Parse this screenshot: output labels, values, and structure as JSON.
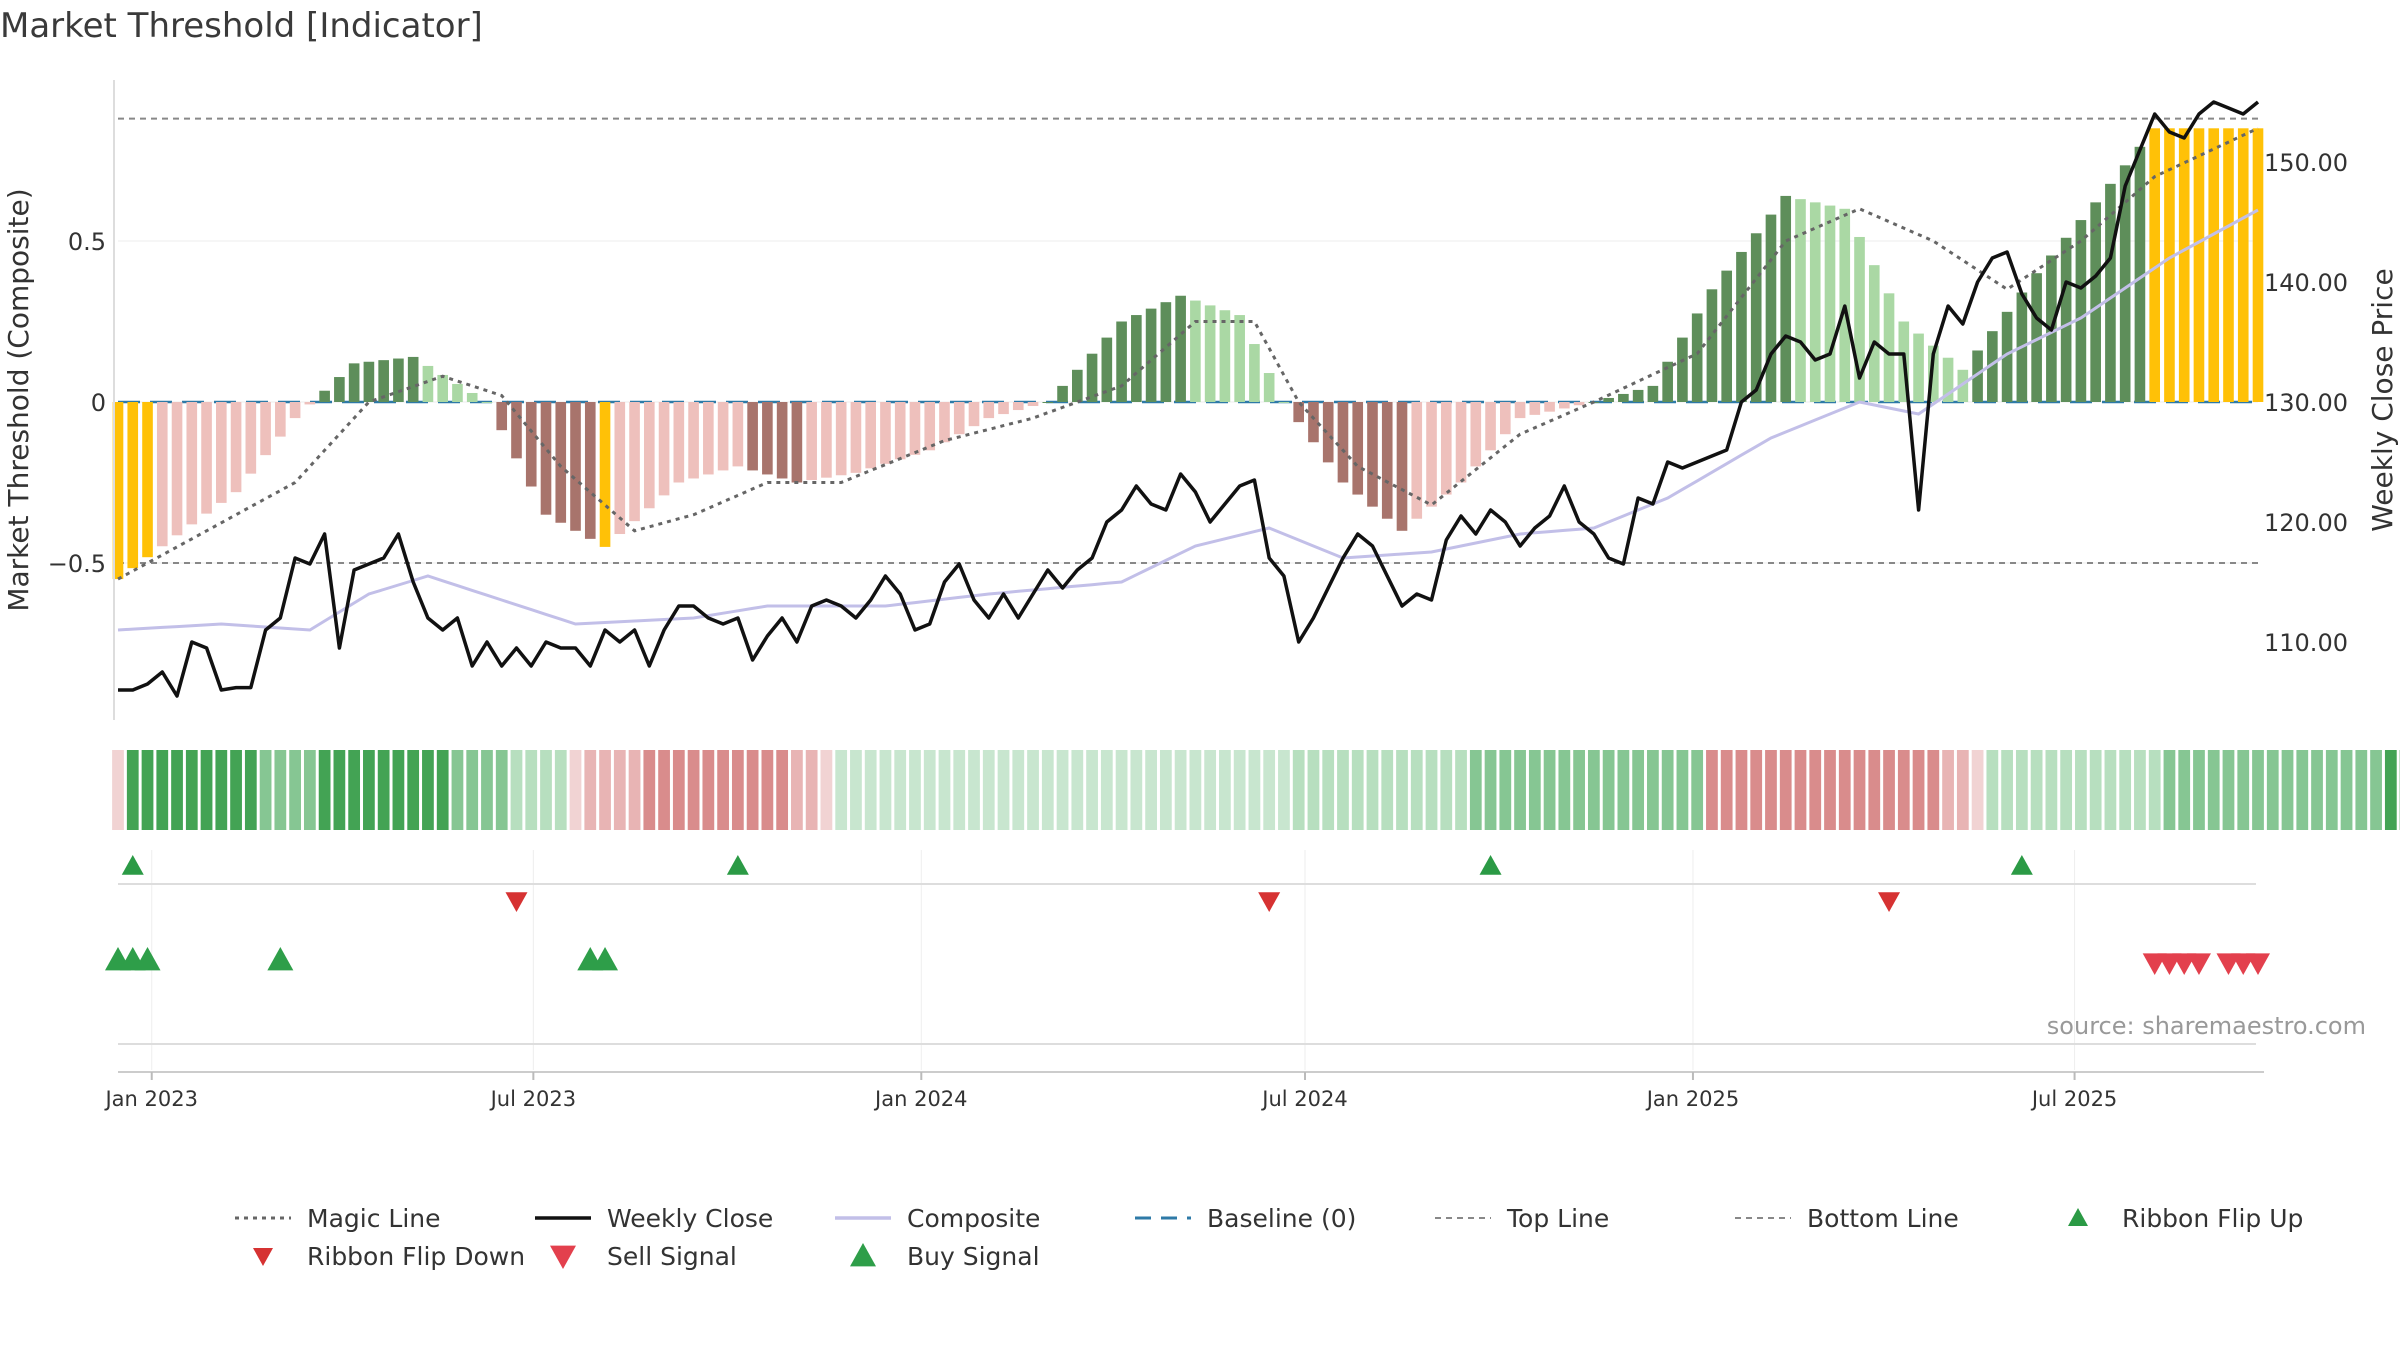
{
  "chart_title": "Market Threshold [Indicator]",
  "chart_data": {
    "type": "bar",
    "title": "Market Threshold [Indicator]",
    "ylabel": "Market Threshold (Composite)",
    "y2label": "Weekly Close Price",
    "ylim": [
      -0.9,
      0.9
    ],
    "y2lim": [
      104,
      155
    ],
    "yticks": [
      {
        "value": 0.5,
        "label": "0.5"
      },
      {
        "value": 0,
        "label": "0"
      },
      {
        "value": -0.5,
        "label": "−0.5"
      }
    ],
    "y2ticks": [
      {
        "value": 150,
        "label": "150.00"
      },
      {
        "value": 140,
        "label": "140.00"
      },
      {
        "value": 130,
        "label": "130.00"
      },
      {
        "value": 120,
        "label": "120.00"
      },
      {
        "value": 110,
        "label": "110.00"
      }
    ],
    "x_start": "2022-12-16",
    "x_end": "2025-09-26",
    "xticks": [
      {
        "date": "2023-01-01",
        "label": "Jan 2023"
      },
      {
        "date": "2023-07-01",
        "label": "Jul 2023"
      },
      {
        "date": "2024-01-01",
        "label": "Jan 2024"
      },
      {
        "date": "2024-07-01",
        "label": "Jul 2024"
      },
      {
        "date": "2025-01-01",
        "label": "Jan 2025"
      },
      {
        "date": "2025-07-01",
        "label": "Jul 2025"
      }
    ],
    "top_line": 0.88,
    "bottom_line": -0.5,
    "baseline": 0,
    "anchors": {
      "composite": [
        [
          "2022-12-16",
          -0.55
        ],
        [
          "2023-01-20",
          -0.38
        ],
        [
          "2023-02-10",
          -0.28
        ],
        [
          "2023-03-10",
          -0.05
        ],
        [
          "2023-04-07",
          0.12
        ],
        [
          "2023-05-05",
          0.14
        ],
        [
          "2023-06-09",
          0.0
        ],
        [
          "2023-07-07",
          -0.35
        ],
        [
          "2023-08-04",
          -0.45
        ],
        [
          "2023-09-08",
          -0.25
        ],
        [
          "2023-10-06",
          -0.2
        ],
        [
          "2023-11-03",
          -0.25
        ],
        [
          "2023-12-01",
          -0.22
        ],
        [
          "2024-01-05",
          -0.15
        ],
        [
          "2024-02-02",
          -0.05
        ],
        [
          "2024-03-01",
          0.0
        ],
        [
          "2024-04-05",
          0.25
        ],
        [
          "2024-05-03",
          0.33
        ],
        [
          "2024-05-31",
          0.27
        ],
        [
          "2024-06-21",
          0.0
        ],
        [
          "2024-07-19",
          -0.25
        ],
        [
          "2024-08-16",
          -0.4
        ],
        [
          "2024-09-13",
          -0.25
        ],
        [
          "2024-10-11",
          -0.05
        ],
        [
          "2024-11-15",
          0.0
        ],
        [
          "2024-12-13",
          0.05
        ],
        [
          "2025-01-10",
          0.35
        ],
        [
          "2025-02-14",
          0.64
        ],
        [
          "2025-03-14",
          0.6
        ],
        [
          "2025-04-11",
          0.25
        ],
        [
          "2025-05-09",
          0.1
        ],
        [
          "2025-06-13",
          0.4
        ],
        [
          "2025-07-11",
          0.62
        ],
        [
          "2025-08-08",
          0.85
        ],
        [
          "2025-09-26",
          0.85
        ]
      ],
      "magic": [
        [
          "2022-12-16",
          -0.55
        ],
        [
          "2023-01-27",
          -0.4
        ],
        [
          "2023-03-10",
          -0.25
        ],
        [
          "2023-04-14",
          0.0
        ],
        [
          "2023-05-19",
          0.08
        ],
        [
          "2023-06-16",
          0.02
        ],
        [
          "2023-07-14",
          -0.2
        ],
        [
          "2023-08-18",
          -0.4
        ],
        [
          "2023-09-15",
          -0.35
        ],
        [
          "2023-10-20",
          -0.25
        ],
        [
          "2023-11-24",
          -0.25
        ],
        [
          "2024-01-12",
          -0.12
        ],
        [
          "2024-02-23",
          -0.05
        ],
        [
          "2024-04-05",
          0.05
        ],
        [
          "2024-05-10",
          0.25
        ],
        [
          "2024-06-07",
          0.25
        ],
        [
          "2024-06-28",
          0.0
        ],
        [
          "2024-07-26",
          -0.2
        ],
        [
          "2024-08-30",
          -0.32
        ],
        [
          "2024-10-11",
          -0.1
        ],
        [
          "2024-11-15",
          0.0
        ],
        [
          "2025-01-03",
          0.15
        ],
        [
          "2025-02-14",
          0.5
        ],
        [
          "2025-03-21",
          0.6
        ],
        [
          "2025-04-25",
          0.5
        ],
        [
          "2025-05-30",
          0.35
        ],
        [
          "2025-07-04",
          0.5
        ],
        [
          "2025-08-08",
          0.7
        ],
        [
          "2025-09-26",
          0.85
        ]
      ],
      "composite_line_price": [
        [
          "2022-12-16",
          111
        ],
        [
          "2023-02-03",
          111.5
        ],
        [
          "2023-03-17",
          111
        ],
        [
          "2023-04-14",
          114
        ],
        [
          "2023-05-12",
          115.5
        ],
        [
          "2023-06-16",
          113.5
        ],
        [
          "2023-07-21",
          111.5
        ],
        [
          "2023-09-15",
          112
        ],
        [
          "2023-10-20",
          113
        ],
        [
          "2023-12-15",
          113
        ],
        [
          "2024-02-02",
          114
        ],
        [
          "2024-04-05",
          115
        ],
        [
          "2024-05-10",
          118
        ],
        [
          "2024-06-14",
          119.5
        ],
        [
          "2024-07-19",
          117
        ],
        [
          "2024-08-30",
          117.5
        ],
        [
          "2024-10-11",
          119
        ],
        [
          "2024-11-15",
          119.5
        ],
        [
          "2024-12-20",
          122
        ],
        [
          "2025-02-07",
          127
        ],
        [
          "2025-03-21",
          130
        ],
        [
          "2025-04-18",
          129
        ],
        [
          "2025-05-30",
          134
        ],
        [
          "2025-07-04",
          137
        ],
        [
          "2025-08-15",
          142
        ],
        [
          "2025-09-26",
          146
        ]
      ]
    },
    "close": [
      106,
      106,
      106.5,
      107.5,
      105.5,
      110,
      109.5,
      106,
      106.2,
      106.2,
      111,
      112,
      117,
      116.5,
      119,
      109.5,
      116,
      116.5,
      117,
      119,
      115,
      112,
      111,
      112,
      108,
      110,
      108,
      109.5,
      108,
      110,
      109.5,
      109.5,
      108,
      111,
      110,
      111,
      108,
      111,
      113,
      113,
      112,
      111.5,
      112,
      108.5,
      110.5,
      112,
      110,
      113,
      113.5,
      113,
      112,
      113.5,
      115.5,
      114,
      111,
      111.5,
      115,
      116.5,
      113.5,
      112,
      114,
      112,
      114,
      116,
      114.5,
      116,
      117,
      120,
      121,
      123,
      121.5,
      121,
      124,
      122.5,
      120,
      121.5,
      123,
      123.5,
      117,
      115.5,
      110,
      112,
      114.5,
      117,
      119,
      118,
      115.5,
      113,
      114,
      113.5,
      118.5,
      120.5,
      119,
      121,
      120,
      118,
      119.5,
      120.5,
      123,
      120,
      119,
      117,
      116.5,
      122,
      121.5,
      125,
      124.5,
      125,
      125.5,
      126,
      130,
      131,
      134,
      135.5,
      135,
      133.5,
      134,
      138,
      132,
      135,
      134,
      134,
      121,
      134,
      138,
      136.5,
      140,
      142,
      142.5,
      139,
      137,
      136,
      140,
      139.5,
      140.5,
      142,
      148,
      151,
      154,
      152.5,
      152,
      154,
      155,
      154.5,
      154,
      155
    ],
    "ribbon_colors": [
      "#f1d3d3",
      "#43a354",
      "#43a354",
      "#43a354",
      "#43a354",
      "#43a354",
      "#43a354",
      "#43a354",
      "#43a354",
      "#43a354",
      "#86c693",
      "#86c693",
      "#86c693",
      "#86c693",
      "#43a354",
      "#43a354",
      "#43a354",
      "#43a354",
      "#43a354",
      "#43a354",
      "#43a354",
      "#43a354",
      "#43a354",
      "#86c693",
      "#86c693",
      "#86c693",
      "#86c693",
      "#b7dfbf",
      "#b7dfbf",
      "#b7dfbf",
      "#b7dfbf",
      "#f1d3d3",
      "#e8b4b4",
      "#e8b4b4",
      "#e8b4b4",
      "#e8b4b4",
      "#d98c8c",
      "#d98c8c",
      "#d98c8c",
      "#d98c8c",
      "#d98c8c",
      "#d98c8c",
      "#d98c8c",
      "#d98c8c",
      "#d98c8c",
      "#d98c8c",
      "#e8b4b4",
      "#e8b4b4",
      "#f1d3d3",
      "#c8e6cf",
      "#c8e6cf",
      "#c8e6cf",
      "#c8e6cf",
      "#c8e6cf",
      "#c8e6cf",
      "#c8e6cf",
      "#c8e6cf",
      "#c8e6cf",
      "#c8e6cf",
      "#c8e6cf",
      "#c8e6cf",
      "#c8e6cf",
      "#c8e6cf",
      "#c8e6cf",
      "#c8e6cf",
      "#c8e6cf",
      "#c8e6cf",
      "#c8e6cf",
      "#c8e6cf",
      "#c8e6cf",
      "#c8e6cf",
      "#c8e6cf",
      "#c8e6cf",
      "#c8e6cf",
      "#c8e6cf",
      "#c8e6cf",
      "#c8e6cf",
      "#c8e6cf",
      "#c8e6cf",
      "#c8e6cf",
      "#b7dfbf",
      "#b7dfbf",
      "#b7dfbf",
      "#b7dfbf",
      "#b7dfbf",
      "#b7dfbf",
      "#b7dfbf",
      "#b7dfbf",
      "#b7dfbf",
      "#b7dfbf",
      "#b7dfbf",
      "#b7dfbf",
      "#86c693",
      "#86c693",
      "#86c693",
      "#86c693",
      "#86c693",
      "#86c693",
      "#86c693",
      "#86c693",
      "#86c693",
      "#86c693",
      "#86c693",
      "#86c693",
      "#86c693",
      "#86c693",
      "#86c693",
      "#86c693",
      "#d98c8c",
      "#d98c8c",
      "#d98c8c",
      "#d98c8c",
      "#d98c8c",
      "#d98c8c",
      "#d98c8c",
      "#d98c8c",
      "#d98c8c",
      "#d98c8c",
      "#d98c8c",
      "#d98c8c",
      "#d98c8c",
      "#d98c8c",
      "#d98c8c",
      "#d98c8c",
      "#e8b4b4",
      "#e8b4b4",
      "#f1d3d3",
      "#b7dfbf",
      "#b7dfbf",
      "#b7dfbf",
      "#b7dfbf",
      "#b7dfbf",
      "#b7dfbf",
      "#b7dfbf",
      "#b7dfbf",
      "#b7dfbf",
      "#b7dfbf",
      "#b7dfbf",
      "#b7dfbf",
      "#86c693",
      "#86c693",
      "#86c693",
      "#86c693",
      "#86c693",
      "#86c693",
      "#86c693",
      "#86c693",
      "#86c693",
      "#86c693",
      "#86c693",
      "#86c693",
      "#86c693",
      "#86c693",
      "#86c693",
      "#43a354",
      "#43a354",
      "#43a354",
      "#43a354",
      "#43a354",
      "#43a354",
      "#43a354",
      "#43a354",
      "#86c693",
      "#86c693",
      "#86c693",
      "#86c693",
      "#86c693",
      "#86c693",
      "#86c693",
      "#86c693",
      "#e8b4b4",
      "#e8b4b4",
      "#e8b4b4",
      "#e8b4b4",
      "#e8b4b4",
      "#e8b4b4",
      "#e8b4b4",
      "#e8b4b4",
      "#e8b4b4",
      "#f1d3d3",
      "#c8e6cf",
      "#c8e6cf",
      "#c8e6cf",
      "#c8e6cf",
      "#c8e6cf",
      "#c8e6cf",
      "#c8e6cf",
      "#c8e6cf",
      "#b7dfbf",
      "#b7dfbf",
      "#b7dfbf",
      "#b7dfbf",
      "#86c693",
      "#86c693",
      "#86c693",
      "#86c693",
      "#86c693",
      "#86c693",
      "#86c693",
      "#86c693",
      "#86c693",
      "#86c693",
      "#86c693",
      "#86c693",
      "#86c693",
      "#86c693",
      "#86c693",
      "#86c693",
      "#86c693",
      "#86c693",
      "#b7dfbf",
      "#b7dfbf",
      "#b7dfbf",
      "#b7dfbf",
      "#b7dfbf"
    ],
    "ribbon_flip_up": [
      "2022-12-23",
      "2023-10-06",
      "2024-09-27",
      "2025-06-06"
    ],
    "ribbon_flip_down": [
      "2023-06-23",
      "2024-06-14",
      "2025-04-04"
    ],
    "buy_signals": [
      "2022-12-16",
      "2022-12-23",
      "2022-12-30",
      "2023-03-03",
      "2023-07-28",
      "2023-08-04"
    ],
    "sell_signals": [
      "2025-08-08",
      "2025-08-15",
      "2025-08-22",
      "2025-08-29",
      "2025-09-12",
      "2025-09-19",
      "2025-09-26"
    ],
    "source": "source: sharemaestro.com",
    "colors": {
      "gold": "#ffc107",
      "pos_dark": "#5e8e5a",
      "pos_light": "#aad8a4",
      "neg_dark": "#a8746c",
      "neg_light": "#eec0bc",
      "close": "#111111",
      "composite_line": "#c2bfe8",
      "magic": "#666666",
      "baseline": "#2e7aa7",
      "flip_up": "#2b9a45",
      "flip_down": "#d63232",
      "sell": "#e3404d",
      "buy": "#2e9e49"
    },
    "legend": [
      {
        "key": "magic",
        "label": "Magic Line"
      },
      {
        "key": "close",
        "label": "Weekly Close"
      },
      {
        "key": "composite",
        "label": "Composite"
      },
      {
        "key": "baseline",
        "label": "Baseline (0)"
      },
      {
        "key": "top",
        "label": "Top Line"
      },
      {
        "key": "bottom",
        "label": "Bottom Line"
      },
      {
        "key": "flip_up",
        "label": "Ribbon Flip Up"
      },
      {
        "key": "flip_down",
        "label": "Ribbon Flip Down"
      },
      {
        "key": "sell",
        "label": "Sell Signal"
      },
      {
        "key": "buy",
        "label": "Buy Signal"
      }
    ]
  }
}
